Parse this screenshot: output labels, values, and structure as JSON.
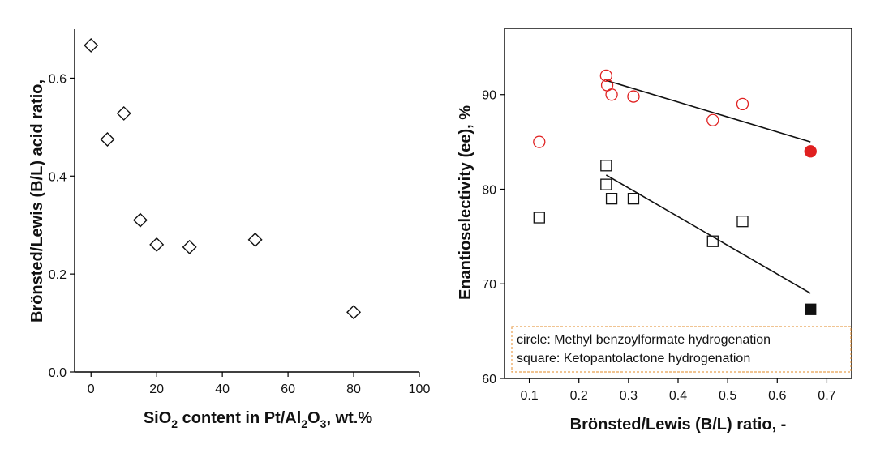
{
  "chart_data": [
    {
      "type": "scatter",
      "xlabel_main": "SiO",
      "xlabel_sub1": "2",
      "xlabel_mid": " content in Pt/Al",
      "xlabel_sub2": "2",
      "xlabel_mid2": "O",
      "xlabel_sub3": "3",
      "xlabel_end": ", wt.%",
      "ylabel": "Brönsted/Lewis (B/L) acid ratio,",
      "xlim": [
        -5,
        100
      ],
      "ylim": [
        0.0,
        0.7
      ],
      "xticks": [
        0,
        20,
        40,
        60,
        80,
        100
      ],
      "xtick_labels": [
        "0",
        "20",
        "40",
        "60",
        "80",
        "100"
      ],
      "yticks": [
        0.0,
        0.2,
        0.4,
        0.6
      ],
      "ytick_labels": [
        "0.0",
        "0.2",
        "0.4",
        "0.6"
      ],
      "marker": "open-diamond",
      "series": [
        {
          "x": [
            0,
            5,
            10,
            15,
            20,
            30,
            50,
            80
          ],
          "y": [
            0.667,
            0.475,
            0.528,
            0.31,
            0.26,
            0.255,
            0.27,
            0.122
          ]
        }
      ]
    },
    {
      "type": "scatter",
      "xlabel": "Brönsted/Lewis (B/L) ratio, -",
      "ylabel": "Enantioselectivity (ee), %",
      "xlim": [
        0.05,
        0.75
      ],
      "ylim": [
        60,
        97
      ],
      "xticks": [
        0.1,
        0.2,
        0.3,
        0.4,
        0.5,
        0.6,
        0.7
      ],
      "xtick_labels": [
        "0.1",
        "0.2",
        "0.3",
        "0.4",
        "0.5",
        "0.6",
        "0.7"
      ],
      "yticks": [
        60,
        70,
        80,
        90
      ],
      "ytick_labels": [
        "60",
        "70",
        "80",
        "90"
      ],
      "legend": {
        "placement": "bottom",
        "lines": [
          "circle: Methyl benzoylformate hydrogenation",
          "square: Ketopantolactone hydrogenation"
        ]
      },
      "series": [
        {
          "marker": "open-circle",
          "color": "#e02020",
          "x": [
            0.12,
            0.255,
            0.257,
            0.266,
            0.31,
            0.47,
            0.53
          ],
          "y": [
            85,
            92,
            91,
            90,
            89.8,
            87.3,
            89
          ]
        },
        {
          "marker": "filled-circle",
          "color": "#e02020",
          "x": [
            0.667
          ],
          "y": [
            84
          ]
        },
        {
          "marker": "open-square",
          "color": "#111111",
          "x": [
            0.12,
            0.255,
            0.255,
            0.266,
            0.31,
            0.47,
            0.53
          ],
          "y": [
            77,
            82.5,
            80.5,
            79,
            79,
            74.5,
            76.6
          ]
        },
        {
          "marker": "filled-square",
          "color": "#111111",
          "x": [
            0.667
          ],
          "y": [
            67.3
          ]
        }
      ],
      "trendlines": [
        {
          "color": "#111111",
          "x": [
            0.255,
            0.667
          ],
          "y": [
            91.5,
            85
          ]
        },
        {
          "color": "#111111",
          "x": [
            0.255,
            0.667
          ],
          "y": [
            81.5,
            69
          ]
        }
      ]
    }
  ]
}
